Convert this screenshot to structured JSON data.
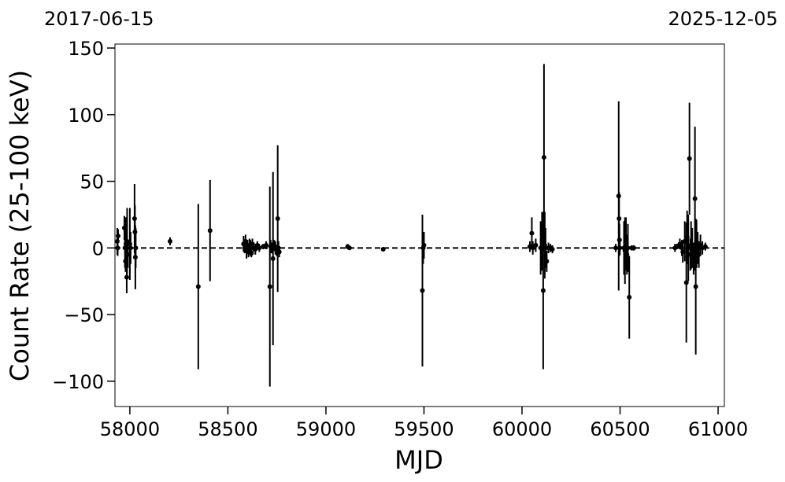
{
  "chart_data": {
    "type": "scatter",
    "title": "",
    "xlabel": "MJD",
    "ylabel": "Count Rate (25-100 keV)",
    "top_left_label": "2017-06-15",
    "top_right_label": "2025-12-05",
    "xlim": [
      57924,
      61032
    ],
    "ylim": [
      -119,
      153
    ],
    "xticks": [
      58000,
      58500,
      59000,
      59500,
      60000,
      60500,
      61000
    ],
    "yticks": [
      -100,
      -50,
      0,
      50,
      100,
      150
    ],
    "ytick_labels": [
      "−100",
      "−50",
      "0",
      "50",
      "100",
      "150"
    ],
    "grid": false,
    "reference_line": {
      "y": 0,
      "style": "dashed",
      "color": "#000000"
    },
    "marker_color": "#000000",
    "points": [
      [
        57936,
        5,
        10
      ],
      [
        57938,
        0,
        6
      ],
      [
        57940,
        9,
        5
      ],
      [
        57972,
        15,
        9
      ],
      [
        57975,
        0,
        15
      ],
      [
        57978,
        -10,
        8
      ],
      [
        57980,
        3,
        20
      ],
      [
        57984,
        -22,
        12
      ],
      [
        57986,
        5,
        25
      ],
      [
        57990,
        -5,
        10
      ],
      [
        58000,
        3,
        27
      ],
      [
        58004,
        0,
        12
      ],
      [
        58024,
        22,
        26
      ],
      [
        58026,
        12,
        20
      ],
      [
        58028,
        -7,
        24
      ],
      [
        58030,
        0,
        15
      ],
      [
        58205,
        5,
        3
      ],
      [
        58349,
        -29,
        62
      ],
      [
        58409,
        13,
        38
      ],
      [
        58580,
        3,
        6
      ],
      [
        58585,
        0,
        4
      ],
      [
        58590,
        5,
        5
      ],
      [
        58595,
        -2,
        6
      ],
      [
        58600,
        1,
        5
      ],
      [
        58605,
        -3,
        4
      ],
      [
        58610,
        2,
        5
      ],
      [
        58615,
        0,
        6
      ],
      [
        58620,
        -4,
        3
      ],
      [
        58625,
        3,
        4
      ],
      [
        58630,
        0,
        3
      ],
      [
        58640,
        -1,
        4
      ],
      [
        58650,
        2,
        3
      ],
      [
        58660,
        0,
        3
      ],
      [
        58680,
        1,
        2
      ],
      [
        58695,
        2,
        3
      ],
      [
        58714,
        -29,
        75
      ],
      [
        58718,
        1,
        5
      ],
      [
        58725,
        0,
        4
      ],
      [
        58730,
        -8,
        65
      ],
      [
        58736,
        2,
        4
      ],
      [
        58742,
        0,
        5
      ],
      [
        58748,
        -2,
        4
      ],
      [
        58754,
        22,
        55
      ],
      [
        58758,
        0,
        5
      ],
      [
        58762,
        -3,
        4
      ],
      [
        59111,
        1,
        2
      ],
      [
        59120,
        0,
        1
      ],
      [
        59292,
        -1,
        1
      ],
      [
        59492,
        -32,
        57
      ],
      [
        59496,
        0,
        12
      ],
      [
        59500,
        2,
        10
      ],
      [
        60040,
        1,
        4
      ],
      [
        60050,
        11,
        12
      ],
      [
        60055,
        0,
        5
      ],
      [
        60070,
        2,
        5
      ],
      [
        60095,
        0,
        20
      ],
      [
        60102,
        5,
        22
      ],
      [
        60108,
        -32,
        59
      ],
      [
        60112,
        68,
        70
      ],
      [
        60116,
        2,
        25
      ],
      [
        60120,
        0,
        15
      ],
      [
        60126,
        -10,
        8
      ],
      [
        60135,
        0,
        4
      ],
      [
        60145,
        0,
        3
      ],
      [
        60155,
        -1,
        3
      ],
      [
        60478,
        0,
        3
      ],
      [
        60493,
        39,
        71
      ],
      [
        60495,
        22,
        20
      ],
      [
        60497,
        6,
        12
      ],
      [
        60499,
        0,
        5
      ],
      [
        60520,
        0,
        20
      ],
      [
        60525,
        -2,
        25
      ],
      [
        60530,
        3,
        20
      ],
      [
        60535,
        -5,
        15
      ],
      [
        60540,
        0,
        18
      ],
      [
        60547,
        -37,
        31
      ],
      [
        60560,
        0,
        2
      ],
      [
        60570,
        0,
        2
      ],
      [
        60780,
        0,
        3
      ],
      [
        60790,
        1,
        2
      ],
      [
        60805,
        3,
        4
      ],
      [
        60815,
        0,
        6
      ],
      [
        60820,
        -3,
        8
      ],
      [
        60830,
        5,
        15
      ],
      [
        60838,
        -26,
        45
      ],
      [
        60842,
        8,
        20
      ],
      [
        60848,
        0,
        25
      ],
      [
        60854,
        67,
        42
      ],
      [
        60858,
        -5,
        12
      ],
      [
        60862,
        2,
        18
      ],
      [
        60868,
        0,
        15
      ],
      [
        60875,
        -8,
        12
      ],
      [
        60882,
        37,
        54
      ],
      [
        60886,
        -29,
        51
      ],
      [
        60890,
        3,
        18
      ],
      [
        60896,
        0,
        12
      ],
      [
        60902,
        -5,
        10
      ],
      [
        60910,
        2,
        8
      ],
      [
        60920,
        0,
        5
      ],
      [
        60935,
        1,
        3
      ]
    ]
  }
}
